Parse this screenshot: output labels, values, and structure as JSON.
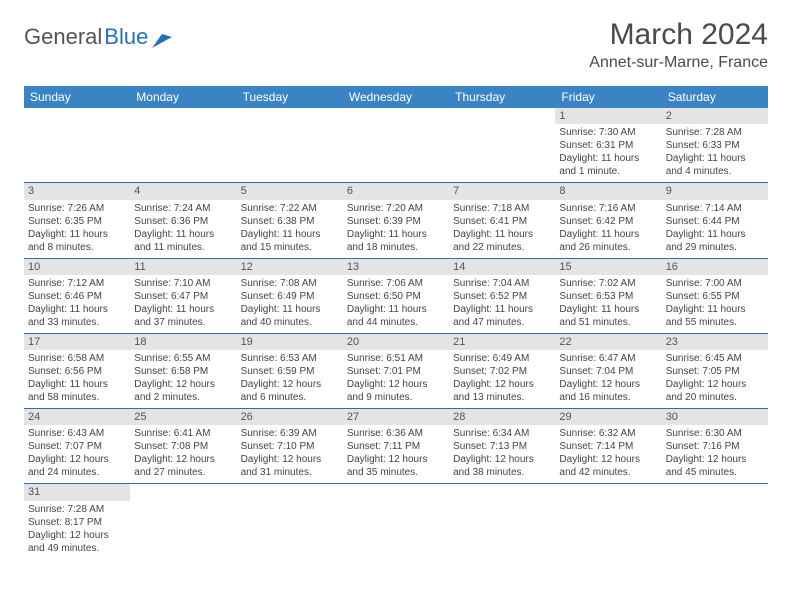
{
  "logo": {
    "part1": "General",
    "part2": "Blue"
  },
  "title": "March 2024",
  "location": "Annet-sur-Marne, France",
  "colors": {
    "header_bg": "#3b84c4",
    "header_text": "#ffffff",
    "border": "#2a6fb5",
    "daynum_bg": "#e4e4e4",
    "text": "#444444",
    "logo_blue": "#2a6fb5"
  },
  "day_headers": [
    "Sunday",
    "Monday",
    "Tuesday",
    "Wednesday",
    "Thursday",
    "Friday",
    "Saturday"
  ],
  "weeks": [
    [
      null,
      null,
      null,
      null,
      null,
      {
        "n": "1",
        "sr": "Sunrise: 7:30 AM",
        "ss": "Sunset: 6:31 PM",
        "dl": "Daylight: 11 hours and 1 minute."
      },
      {
        "n": "2",
        "sr": "Sunrise: 7:28 AM",
        "ss": "Sunset: 6:33 PM",
        "dl": "Daylight: 11 hours and 4 minutes."
      }
    ],
    [
      {
        "n": "3",
        "sr": "Sunrise: 7:26 AM",
        "ss": "Sunset: 6:35 PM",
        "dl": "Daylight: 11 hours and 8 minutes."
      },
      {
        "n": "4",
        "sr": "Sunrise: 7:24 AM",
        "ss": "Sunset: 6:36 PM",
        "dl": "Daylight: 11 hours and 11 minutes."
      },
      {
        "n": "5",
        "sr": "Sunrise: 7:22 AM",
        "ss": "Sunset: 6:38 PM",
        "dl": "Daylight: 11 hours and 15 minutes."
      },
      {
        "n": "6",
        "sr": "Sunrise: 7:20 AM",
        "ss": "Sunset: 6:39 PM",
        "dl": "Daylight: 11 hours and 18 minutes."
      },
      {
        "n": "7",
        "sr": "Sunrise: 7:18 AM",
        "ss": "Sunset: 6:41 PM",
        "dl": "Daylight: 11 hours and 22 minutes."
      },
      {
        "n": "8",
        "sr": "Sunrise: 7:16 AM",
        "ss": "Sunset: 6:42 PM",
        "dl": "Daylight: 11 hours and 26 minutes."
      },
      {
        "n": "9",
        "sr": "Sunrise: 7:14 AM",
        "ss": "Sunset: 6:44 PM",
        "dl": "Daylight: 11 hours and 29 minutes."
      }
    ],
    [
      {
        "n": "10",
        "sr": "Sunrise: 7:12 AM",
        "ss": "Sunset: 6:46 PM",
        "dl": "Daylight: 11 hours and 33 minutes."
      },
      {
        "n": "11",
        "sr": "Sunrise: 7:10 AM",
        "ss": "Sunset: 6:47 PM",
        "dl": "Daylight: 11 hours and 37 minutes."
      },
      {
        "n": "12",
        "sr": "Sunrise: 7:08 AM",
        "ss": "Sunset: 6:49 PM",
        "dl": "Daylight: 11 hours and 40 minutes."
      },
      {
        "n": "13",
        "sr": "Sunrise: 7:06 AM",
        "ss": "Sunset: 6:50 PM",
        "dl": "Daylight: 11 hours and 44 minutes."
      },
      {
        "n": "14",
        "sr": "Sunrise: 7:04 AM",
        "ss": "Sunset: 6:52 PM",
        "dl": "Daylight: 11 hours and 47 minutes."
      },
      {
        "n": "15",
        "sr": "Sunrise: 7:02 AM",
        "ss": "Sunset: 6:53 PM",
        "dl": "Daylight: 11 hours and 51 minutes."
      },
      {
        "n": "16",
        "sr": "Sunrise: 7:00 AM",
        "ss": "Sunset: 6:55 PM",
        "dl": "Daylight: 11 hours and 55 minutes."
      }
    ],
    [
      {
        "n": "17",
        "sr": "Sunrise: 6:58 AM",
        "ss": "Sunset: 6:56 PM",
        "dl": "Daylight: 11 hours and 58 minutes."
      },
      {
        "n": "18",
        "sr": "Sunrise: 6:55 AM",
        "ss": "Sunset: 6:58 PM",
        "dl": "Daylight: 12 hours and 2 minutes."
      },
      {
        "n": "19",
        "sr": "Sunrise: 6:53 AM",
        "ss": "Sunset: 6:59 PM",
        "dl": "Daylight: 12 hours and 6 minutes."
      },
      {
        "n": "20",
        "sr": "Sunrise: 6:51 AM",
        "ss": "Sunset: 7:01 PM",
        "dl": "Daylight: 12 hours and 9 minutes."
      },
      {
        "n": "21",
        "sr": "Sunrise: 6:49 AM",
        "ss": "Sunset: 7:02 PM",
        "dl": "Daylight: 12 hours and 13 minutes."
      },
      {
        "n": "22",
        "sr": "Sunrise: 6:47 AM",
        "ss": "Sunset: 7:04 PM",
        "dl": "Daylight: 12 hours and 16 minutes."
      },
      {
        "n": "23",
        "sr": "Sunrise: 6:45 AM",
        "ss": "Sunset: 7:05 PM",
        "dl": "Daylight: 12 hours and 20 minutes."
      }
    ],
    [
      {
        "n": "24",
        "sr": "Sunrise: 6:43 AM",
        "ss": "Sunset: 7:07 PM",
        "dl": "Daylight: 12 hours and 24 minutes."
      },
      {
        "n": "25",
        "sr": "Sunrise: 6:41 AM",
        "ss": "Sunset: 7:08 PM",
        "dl": "Daylight: 12 hours and 27 minutes."
      },
      {
        "n": "26",
        "sr": "Sunrise: 6:39 AM",
        "ss": "Sunset: 7:10 PM",
        "dl": "Daylight: 12 hours and 31 minutes."
      },
      {
        "n": "27",
        "sr": "Sunrise: 6:36 AM",
        "ss": "Sunset: 7:11 PM",
        "dl": "Daylight: 12 hours and 35 minutes."
      },
      {
        "n": "28",
        "sr": "Sunrise: 6:34 AM",
        "ss": "Sunset: 7:13 PM",
        "dl": "Daylight: 12 hours and 38 minutes."
      },
      {
        "n": "29",
        "sr": "Sunrise: 6:32 AM",
        "ss": "Sunset: 7:14 PM",
        "dl": "Daylight: 12 hours and 42 minutes."
      },
      {
        "n": "30",
        "sr": "Sunrise: 6:30 AM",
        "ss": "Sunset: 7:16 PM",
        "dl": "Daylight: 12 hours and 45 minutes."
      }
    ],
    [
      {
        "n": "31",
        "sr": "Sunrise: 7:28 AM",
        "ss": "Sunset: 8:17 PM",
        "dl": "Daylight: 12 hours and 49 minutes."
      },
      null,
      null,
      null,
      null,
      null,
      null
    ]
  ]
}
